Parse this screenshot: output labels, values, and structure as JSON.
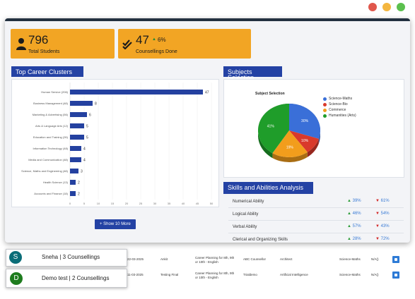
{
  "window_controls": [
    {
      "name": "close",
      "color": "#e0574c"
    },
    {
      "name": "minimize",
      "color": "#f4b63f"
    },
    {
      "name": "maximize",
      "color": "#5bc04e"
    }
  ],
  "stats": {
    "students": {
      "value": "796",
      "label": "Total Students",
      "icon": "person-icon"
    },
    "counsellings": {
      "value": "47",
      "change": "6%",
      "label": "Counsellings Done",
      "icon": "double-check-icon"
    }
  },
  "career_clusters": {
    "title": "Top Career Clusters",
    "more_button": "+ Show 10 More"
  },
  "subjects": {
    "title": "Subjects Selection"
  },
  "skills": {
    "title": "Skills and Abilities Analysis",
    "rows": [
      {
        "name": "Numerical Ability",
        "up": "39%",
        "down": "61%"
      },
      {
        "name": "Logical Ability",
        "up": "46%",
        "down": "54%"
      },
      {
        "name": "Verbal Ability",
        "up": "57%",
        "down": "43%"
      },
      {
        "name": "Clerical and Organizing Skills",
        "up": "28%",
        "down": "72%"
      }
    ]
  },
  "counselling_cards": [
    {
      "initial": "S",
      "text": "Sneha | 3 Counsellings",
      "color": "#0b6d78"
    },
    {
      "initial": "D",
      "text": "Demo test | 2 Counsellings",
      "color": "#1e7c1e"
    }
  ],
  "table_rows": [
    {
      "date": "22-03-2025",
      "student": "Ankit",
      "program": "Career Planning for 8th, 9th or 10th - English",
      "counsellor": "ABC Counsellor",
      "career": "Architect",
      "stream": "Science-Maths",
      "result": "N/A()"
    },
    {
      "date": "11-03-2025",
      "student": "Testing Final",
      "program": "Career Planning for 8th, 9th or 10th - English",
      "counsellor": "Trialdemo",
      "career": "Artificial Intelligence",
      "stream": "Science-Maths",
      "result": "N/A()"
    }
  ],
  "chart_data": [
    {
      "type": "bar",
      "orientation": "horizontal",
      "categories": [
        "Human Service (206)",
        "Business Management (48)",
        "Marketing & Advertising (56)",
        "Arts & Language Arts (12)",
        "Education and Training (26)",
        "Information Technology (48)",
        "Media and Communication (48)",
        "Science, Maths and Engineering (48)",
        "Health Science (13)",
        "Accounts and Finance (18)"
      ],
      "values": [
        47,
        8,
        6,
        5,
        5,
        4,
        4,
        3,
        2,
        2
      ],
      "xlim": [
        0,
        50
      ],
      "xticks": [
        0,
        5,
        10,
        15,
        20,
        25,
        30,
        35,
        40,
        45,
        50
      ],
      "color": "#2441a0"
    },
    {
      "type": "pie",
      "title": "Subject Selection",
      "labels": [
        "Science-Maths",
        "Science-Bio",
        "Commerce",
        "Humanities (Arts)"
      ],
      "values": [
        30,
        10,
        19,
        41
      ],
      "colors": [
        "#3a6fd8",
        "#d9392b",
        "#f29d1c",
        "#1f9d2a"
      ],
      "legend": "right"
    }
  ]
}
